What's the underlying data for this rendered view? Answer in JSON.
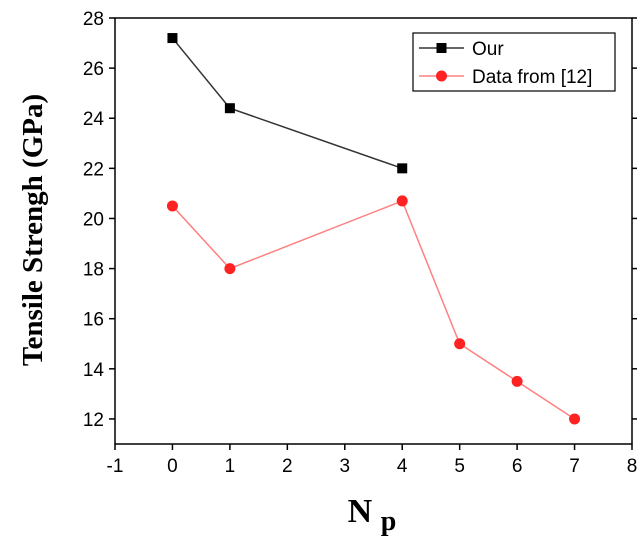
{
  "chart_data": {
    "type": "line",
    "title": "",
    "xlabel": "N",
    "xlabel_sub": "p",
    "ylabel": "Tensile Strengh (GPa)",
    "xlim": [
      -1,
      8
    ],
    "ylim": [
      11,
      28
    ],
    "xticks": [
      -1,
      0,
      1,
      2,
      3,
      4,
      5,
      6,
      7,
      8
    ],
    "yticks": [
      12,
      14,
      16,
      18,
      20,
      22,
      24,
      26,
      28
    ],
    "grid": false,
    "legend_position": "top-right",
    "series": [
      {
        "name": "Our",
        "color": "#000000",
        "line_color": "#333333",
        "marker": "square",
        "x": [
          0,
          1,
          4
        ],
        "y": [
          27.2,
          24.4,
          22.0
        ]
      },
      {
        "name": "Data from [12]",
        "color": "#ff2222",
        "line_color": "#ff8080",
        "marker": "circle",
        "x": [
          0,
          1,
          4,
          5,
          6,
          7
        ],
        "y": [
          20.5,
          18.0,
          20.7,
          15.0,
          13.5,
          12.0
        ]
      }
    ]
  }
}
